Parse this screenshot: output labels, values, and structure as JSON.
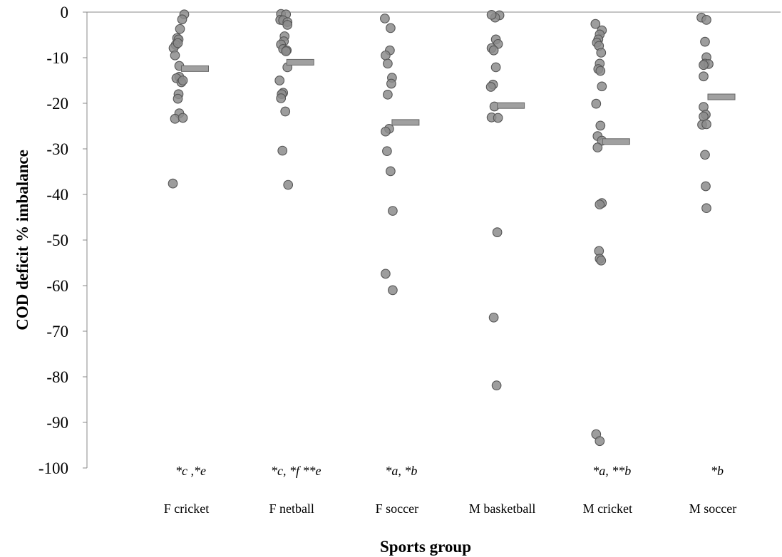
{
  "chart_data": {
    "type": "scatter",
    "title": "",
    "xlabel": "Sports group",
    "ylabel": "COD deficit % imbalance",
    "ylim": [
      -100,
      0
    ],
    "yticks": [
      0,
      -10,
      -20,
      -30,
      -40,
      -50,
      -60,
      -70,
      -80,
      -90,
      -100
    ],
    "ytick_labels": [
      "0",
      "-10",
      "-20",
      "-30",
      "-40",
      "-50",
      "-60",
      "-70",
      "-80",
      "-90",
      "-100"
    ],
    "grid": false,
    "legend": "none",
    "colors": {
      "point": "#8c8c8c",
      "point_stroke": "#555555",
      "mean": "#a0a0a0",
      "mean_stroke": "#666666",
      "axis": "#888888"
    },
    "categories": [
      "F cricket",
      "F netball",
      "F soccer",
      "M basketball",
      "M cricket",
      "M soccer"
    ],
    "groups": [
      {
        "name": "F cricket",
        "mean": -12.4,
        "annotation": "*c ,*e",
        "points": [
          [
            -0.3,
            -0.5
          ],
          [
            -0.6,
            -1.6
          ],
          [
            -0.9,
            -3.7
          ],
          [
            -1.3,
            -5.7
          ],
          [
            -1.1,
            -6.0
          ],
          [
            -1.5,
            -7.2
          ],
          [
            -1.8,
            -7.9
          ],
          [
            -1.2,
            -6.8
          ],
          [
            -1.6,
            -9.5
          ],
          [
            -1.0,
            -11.8
          ],
          [
            -1.0,
            -14.2
          ],
          [
            -1.4,
            -14.5
          ],
          [
            -0.7,
            -15.4
          ],
          [
            -0.5,
            -15.0
          ],
          [
            -1.1,
            -18.0
          ],
          [
            -1.2,
            -19.0
          ],
          [
            -1.0,
            -22.2
          ],
          [
            -1.6,
            -23.4
          ],
          [
            -0.5,
            -23.2
          ],
          [
            -1.9,
            -37.6
          ]
        ]
      },
      {
        "name": "F netball",
        "mean": -11.0,
        "annotation": "*c, *f **e",
        "points": [
          [
            -1.5,
            -0.4
          ],
          [
            -0.8,
            -0.5
          ],
          [
            -1.6,
            -1.7
          ],
          [
            -1.2,
            -1.8
          ],
          [
            -0.6,
            -2.2
          ],
          [
            -0.6,
            -2.8
          ],
          [
            -1.0,
            -5.3
          ],
          [
            -1.1,
            -6.4
          ],
          [
            -1.5,
            -7.1
          ],
          [
            -1.2,
            -8.1
          ],
          [
            -0.7,
            -8.4
          ],
          [
            -0.8,
            -8.6
          ],
          [
            -0.6,
            -12.1
          ],
          [
            -1.2,
            -17.7
          ],
          [
            -1.4,
            -18.0
          ],
          [
            -1.5,
            -18.9
          ],
          [
            -1.7,
            -15.0
          ],
          [
            -0.9,
            -21.8
          ],
          [
            -1.3,
            -30.4
          ],
          [
            -0.5,
            -37.9
          ]
        ]
      },
      {
        "name": "F soccer",
        "mean": -24.2,
        "annotation": "*a, *b",
        "points": [
          [
            -1.7,
            -1.4
          ],
          [
            -0.9,
            -3.5
          ],
          [
            -1.0,
            -8.4
          ],
          [
            -1.6,
            -9.5
          ],
          [
            -1.3,
            -11.3
          ],
          [
            -0.7,
            -14.4
          ],
          [
            -0.8,
            -15.7
          ],
          [
            -1.3,
            -18.1
          ],
          [
            -1.1,
            -25.6
          ],
          [
            -1.6,
            -26.2
          ],
          [
            -1.4,
            -30.5
          ],
          [
            -0.9,
            -34.9
          ],
          [
            -0.6,
            -43.6
          ],
          [
            -1.6,
            -57.4
          ],
          [
            -0.6,
            -61.0
          ]
        ]
      },
      {
        "name": "M basketball",
        "mean": -20.5,
        "annotation": "",
        "points": [
          [
            -0.4,
            -0.7
          ],
          [
            -1.0,
            -1.2
          ],
          [
            -1.5,
            -0.6
          ],
          [
            -0.9,
            -6.0
          ],
          [
            -0.6,
            -7.0
          ],
          [
            -1.5,
            -7.9
          ],
          [
            -1.2,
            -8.4
          ],
          [
            -0.9,
            -12.1
          ],
          [
            -1.3,
            -15.9
          ],
          [
            -1.6,
            -16.4
          ],
          [
            -1.1,
            -20.7
          ],
          [
            -1.5,
            -23.1
          ],
          [
            -0.6,
            -23.2
          ],
          [
            -0.7,
            -48.3
          ],
          [
            -1.2,
            -67.0
          ],
          [
            -0.8,
            -81.9
          ]
        ]
      },
      {
        "name": "M cricket",
        "mean": -28.4,
        "annotation": "*a, **b",
        "points": [
          [
            -1.7,
            -2.6
          ],
          [
            -0.8,
            -4.0
          ],
          [
            -1.1,
            -4.9
          ],
          [
            -1.3,
            -6.0
          ],
          [
            -1.5,
            -6.7
          ],
          [
            -1.2,
            -7.4
          ],
          [
            -0.9,
            -8.9
          ],
          [
            -1.1,
            -11.3
          ],
          [
            -1.3,
            -12.5
          ],
          [
            -1.0,
            -12.9
          ],
          [
            -0.8,
            -16.3
          ],
          [
            -1.6,
            -20.1
          ],
          [
            -1.0,
            -24.9
          ],
          [
            -1.4,
            -27.2
          ],
          [
            -0.8,
            -28.2
          ],
          [
            -1.4,
            -29.7
          ],
          [
            -0.8,
            -41.9
          ],
          [
            -1.1,
            -42.2
          ],
          [
            -1.2,
            -52.4
          ],
          [
            -1.1,
            -54.1
          ],
          [
            -0.9,
            -54.5
          ],
          [
            -1.6,
            -92.6
          ],
          [
            -1.1,
            -94.1
          ]
        ]
      },
      {
        "name": "M soccer",
        "mean": -18.6,
        "annotation": "*b",
        "points": [
          [
            -1.6,
            -1.2
          ],
          [
            -0.9,
            -1.7
          ],
          [
            -1.1,
            -6.5
          ],
          [
            -0.9,
            -9.9
          ],
          [
            -1.1,
            -11.3
          ],
          [
            -0.6,
            -11.4
          ],
          [
            -1.3,
            -11.6
          ],
          [
            -1.3,
            -14.1
          ],
          [
            -1.3,
            -20.8
          ],
          [
            -1.0,
            -22.5
          ],
          [
            -1.3,
            -22.9
          ],
          [
            -1.5,
            -24.7
          ],
          [
            -0.9,
            -24.6
          ],
          [
            -1.1,
            -31.3
          ],
          [
            -1.0,
            -38.2
          ],
          [
            -0.9,
            -43.0
          ]
        ]
      }
    ]
  }
}
